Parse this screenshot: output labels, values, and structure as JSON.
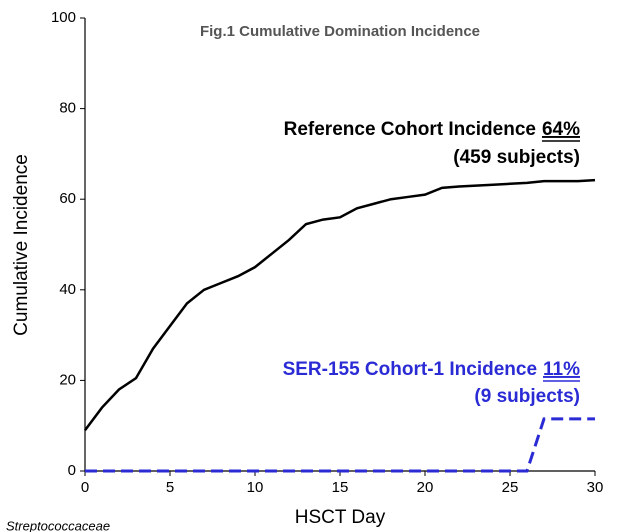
{
  "chart_data": {
    "type": "line",
    "title": "Fig.1 Cumulative Domination Incidence",
    "x_label": "HSCT Day",
    "y_label": "Cumulative Incidence",
    "footnote": "Streptococcaceae",
    "xlim": [
      0,
      30
    ],
    "xticks": [
      0,
      5,
      10,
      15,
      20,
      25,
      30
    ],
    "ylim": [
      0,
      100
    ],
    "yticks": [
      0,
      20,
      40,
      60,
      80,
      100
    ],
    "series": [
      {
        "name": "Reference Cohort",
        "color": "#000000",
        "dashed": false,
        "annotation": {
          "label": "Reference Cohort Incidence",
          "rate": "64%",
          "subjects": "(459 subjects)"
        },
        "x": [
          0,
          1,
          2,
          3,
          4,
          5,
          6,
          7,
          8,
          9,
          10,
          11,
          12,
          13,
          14,
          15,
          16,
          17,
          18,
          19,
          20,
          21,
          22,
          23,
          24,
          25,
          26,
          27,
          28,
          29,
          30
        ],
        "values": [
          9,
          14,
          18,
          20.5,
          27,
          32,
          37,
          40,
          41.5,
          43,
          45,
          48,
          51,
          54.5,
          55.5,
          56,
          58,
          59,
          60,
          60.5,
          61,
          62.5,
          62.8,
          63,
          63.2,
          63.4,
          63.6,
          64,
          64,
          64,
          64.2
        ]
      },
      {
        "name": "SER-155 Cohort-1",
        "color": "#2b2bd6",
        "dashed": true,
        "annotation": {
          "label": "SER-155 Cohort-1 Incidence",
          "rate": "11%",
          "subjects": "(9 subjects)"
        },
        "x": [
          0,
          26,
          27,
          30
        ],
        "values": [
          0,
          0,
          11.5,
          11.5
        ]
      }
    ]
  }
}
